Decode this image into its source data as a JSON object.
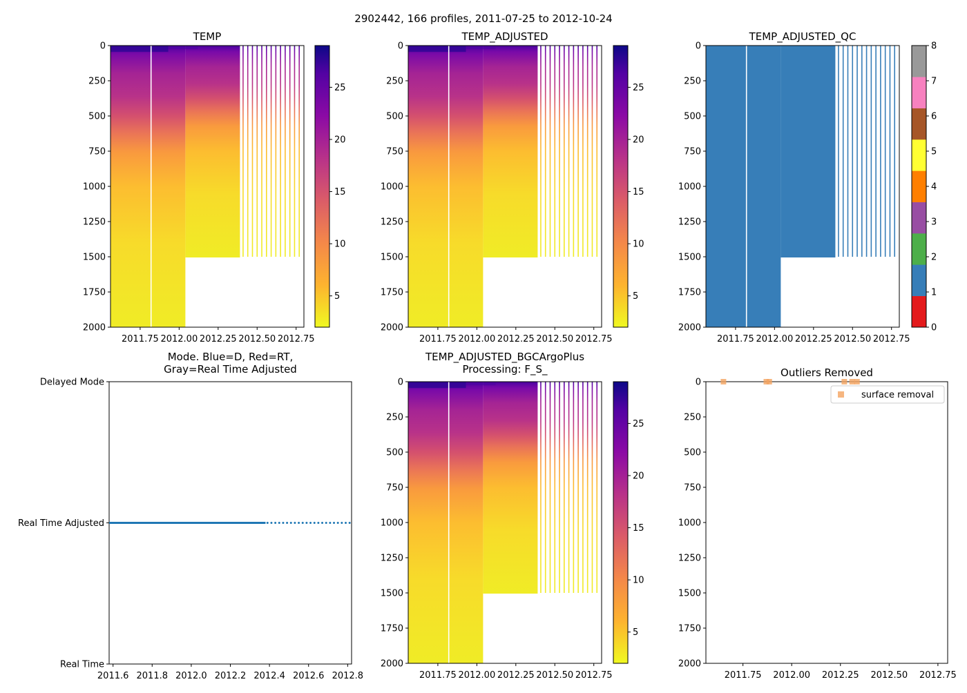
{
  "suptitle": "2902442, 166 profiles, 2011-07-25 to 2012-10-24",
  "colors": {
    "plasma": [
      "#f0f921",
      "#fca636",
      "#e16462",
      "#b12a90",
      "#6a00a8",
      "#0d0887"
    ],
    "qc_classes": [
      "#e41a1c",
      "#377eb8",
      "#4daf4a",
      "#984ea3",
      "#ff7f00",
      "#ffff33",
      "#a65628",
      "#f781bf",
      "#999999"
    ],
    "mode_line": "#1f77b4",
    "outlier": "#f4a460"
  },
  "chart_data": [
    {
      "id": "temp",
      "type": "heatmap",
      "title": "TEMP",
      "xlim": [
        2011.56,
        2012.8
      ],
      "ylim": [
        2000,
        0
      ],
      "xticks": [
        2011.75,
        2012.0,
        2012.25,
        2012.5,
        2012.75
      ],
      "xtick_labels": [
        "2011.75",
        "2012.00",
        "2012.25",
        "2012.50",
        "2012.75"
      ],
      "yticks": [
        0,
        250,
        500,
        750,
        1000,
        1250,
        1500,
        1750,
        2000
      ],
      "ytick_labels": [
        "0",
        "250",
        "500",
        "750",
        "1000",
        "1250",
        "1500",
        "1750",
        "2000"
      ],
      "colorbar": {
        "cmap": "plasma_r",
        "vmin": 2,
        "vmax": 29,
        "ticks": [
          5,
          10,
          15,
          20,
          25
        ],
        "tick_labels": [
          "5",
          "10",
          "15",
          "20",
          "25"
        ]
      },
      "profiles": {
        "dense_start": 2011.56,
        "dense_end": 2012.39,
        "gap_at": 2011.82,
        "deep_until": 2012.04,
        "shallow_depth": 1500,
        "sparse_times": [
          2012.41,
          2012.44,
          2012.47,
          2012.5,
          2012.53,
          2012.56,
          2012.59,
          2012.62,
          2012.65,
          2012.68,
          2012.71,
          2012.74,
          2012.77
        ]
      }
    },
    {
      "id": "temp_adjusted",
      "type": "heatmap",
      "title": "TEMP_ADJUSTED",
      "xlim": [
        2011.56,
        2012.8
      ],
      "ylim": [
        2000,
        0
      ],
      "xticks": [
        2011.75,
        2012.0,
        2012.25,
        2012.5,
        2012.75
      ],
      "xtick_labels": [
        "2011.75",
        "2012.00",
        "2012.25",
        "2012.50",
        "2012.75"
      ],
      "yticks": [
        0,
        250,
        500,
        750,
        1000,
        1250,
        1500,
        1750,
        2000
      ],
      "ytick_labels": [
        "0",
        "250",
        "500",
        "750",
        "1000",
        "1250",
        "1500",
        "1750",
        "2000"
      ],
      "colorbar": {
        "cmap": "plasma_r",
        "vmin": 2,
        "vmax": 29,
        "ticks": [
          5,
          10,
          15,
          20,
          25
        ],
        "tick_labels": [
          "5",
          "10",
          "15",
          "20",
          "25"
        ]
      },
      "profiles": {
        "dense_start": 2011.56,
        "dense_end": 2012.39,
        "gap_at": 2011.82,
        "deep_until": 2012.04,
        "shallow_depth": 1500,
        "sparse_times": [
          2012.41,
          2012.44,
          2012.47,
          2012.5,
          2012.53,
          2012.56,
          2012.59,
          2012.62,
          2012.65,
          2012.68,
          2012.71,
          2012.74,
          2012.77
        ]
      }
    },
    {
      "id": "temp_adjusted_qc",
      "type": "heatmap",
      "title": "TEMP_ADJUSTED_QC",
      "xlim": [
        2011.56,
        2012.8
      ],
      "ylim": [
        2000,
        0
      ],
      "xticks": [
        2011.75,
        2012.0,
        2012.25,
        2012.5,
        2012.75
      ],
      "xtick_labels": [
        "2011.75",
        "2012.00",
        "2012.25",
        "2012.50",
        "2012.75"
      ],
      "yticks": [
        0,
        250,
        500,
        750,
        1000,
        1250,
        1500,
        1750,
        2000
      ],
      "ytick_labels": [
        "0",
        "250",
        "500",
        "750",
        "1000",
        "1250",
        "1500",
        "1750",
        "2000"
      ],
      "qc_value": 1,
      "colorbar": {
        "cmap": "qc_discrete",
        "vmin": 0,
        "vmax": 8,
        "ticks": [
          0,
          1,
          2,
          3,
          4,
          5,
          6,
          7,
          8
        ],
        "tick_labels": [
          "0",
          "1",
          "2",
          "3",
          "4",
          "5",
          "6",
          "7",
          "8"
        ]
      },
      "profiles": {
        "dense_start": 2011.56,
        "dense_end": 2012.39,
        "gap_at": 2011.82,
        "deep_until": 2012.04,
        "shallow_depth": 1500,
        "sparse_times": [
          2012.41,
          2012.44,
          2012.47,
          2012.5,
          2012.53,
          2012.56,
          2012.59,
          2012.62,
          2012.65,
          2012.68,
          2012.71,
          2012.74,
          2012.77
        ]
      }
    },
    {
      "id": "mode",
      "type": "scatter",
      "title_lines": [
        "Mode. Blue=D, Red=RT,",
        "Gray=Real Time Adjusted"
      ],
      "xlim": [
        2011.58,
        2012.82
      ],
      "xticks": [
        2011.6,
        2011.8,
        2012.0,
        2012.2,
        2012.4,
        2012.6,
        2012.8
      ],
      "xtick_labels": [
        "2011.6",
        "2011.8",
        "2012.0",
        "2012.2",
        "2012.4",
        "2012.6",
        "2012.8"
      ],
      "ycategories": [
        "Real Time",
        "Real Time Adjusted",
        "Delayed Mode"
      ],
      "mode_value": 1,
      "dense_x": [
        2011.58,
        2012.38
      ],
      "sparse_x": [
        2012.39,
        2012.41,
        2012.43,
        2012.45,
        2012.47,
        2012.49,
        2012.51,
        2012.53,
        2012.55,
        2012.57,
        2012.59,
        2012.61,
        2012.63,
        2012.65,
        2012.67,
        2012.69,
        2012.71,
        2012.73,
        2012.75,
        2012.77,
        2012.79,
        2012.81
      ]
    },
    {
      "id": "temp_bgc",
      "type": "heatmap",
      "title_lines": [
        "TEMP_ADJUSTED_BGCArgoPlus",
        "Processing: F_S_"
      ],
      "xlim": [
        2011.56,
        2012.8
      ],
      "ylim": [
        2000,
        0
      ],
      "xticks": [
        2011.75,
        2012.0,
        2012.25,
        2012.5,
        2012.75
      ],
      "xtick_labels": [
        "2011.75",
        "2012.00",
        "2012.25",
        "2012.50",
        "2012.75"
      ],
      "yticks": [
        0,
        250,
        500,
        750,
        1000,
        1250,
        1500,
        1750,
        2000
      ],
      "ytick_labels": [
        "0",
        "250",
        "500",
        "750",
        "1000",
        "1250",
        "1500",
        "1750",
        "2000"
      ],
      "colorbar": {
        "cmap": "plasma_r",
        "vmin": 2,
        "vmax": 29,
        "ticks": [
          5,
          10,
          15,
          20,
          25
        ],
        "tick_labels": [
          "5",
          "10",
          "15",
          "20",
          "25"
        ]
      },
      "profiles": {
        "dense_start": 2011.56,
        "dense_end": 2012.39,
        "gap_at": 2011.82,
        "deep_until": 2012.04,
        "shallow_depth": 1500,
        "sparse_times": [
          2012.41,
          2012.44,
          2012.47,
          2012.5,
          2012.53,
          2012.56,
          2012.59,
          2012.62,
          2012.65,
          2012.68,
          2012.71,
          2012.74,
          2012.77
        ]
      }
    },
    {
      "id": "outliers",
      "type": "scatter",
      "title": "Outliers Removed",
      "xlim": [
        2011.56,
        2012.8
      ],
      "ylim": [
        2000,
        0
      ],
      "xticks": [
        2011.75,
        2012.0,
        2012.25,
        2012.5,
        2012.75
      ],
      "xtick_labels": [
        "2011.75",
        "2012.00",
        "2012.25",
        "2012.50",
        "2012.75"
      ],
      "yticks": [
        0,
        250,
        500,
        750,
        1000,
        1250,
        1500,
        1750,
        2000
      ],
      "ytick_labels": [
        "0",
        "250",
        "500",
        "750",
        "1000",
        "1250",
        "1500",
        "1750",
        "2000"
      ],
      "legend": {
        "label": "surface removal",
        "loc": "upper right"
      },
      "points": [
        {
          "x": 2011.65,
          "y": 0
        },
        {
          "x": 2011.87,
          "y": 0
        },
        {
          "x": 2011.885,
          "y": 0
        },
        {
          "x": 2012.27,
          "y": 0
        },
        {
          "x": 2012.31,
          "y": 0
        },
        {
          "x": 2012.335,
          "y": 0
        }
      ]
    }
  ]
}
